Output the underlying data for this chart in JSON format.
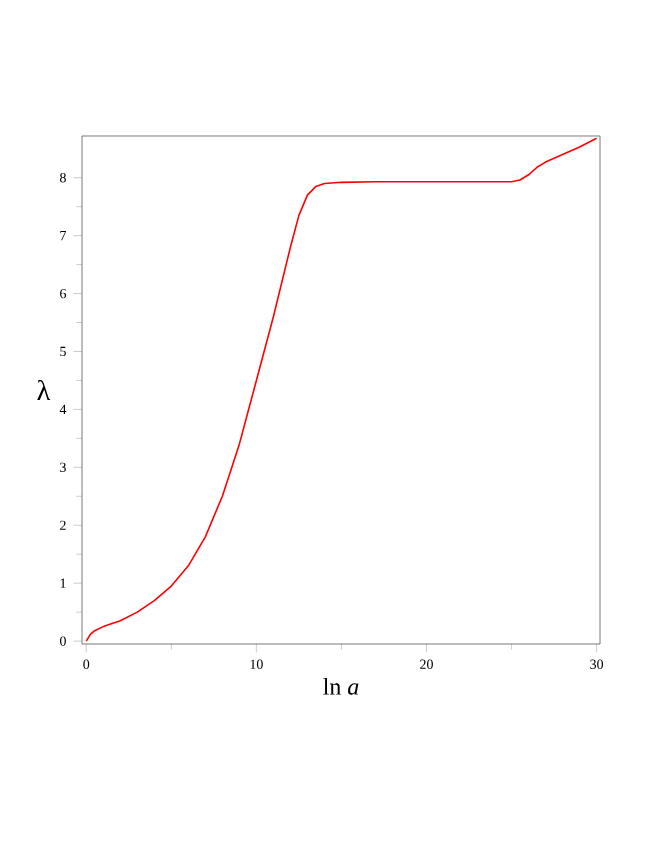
{
  "chart_data": {
    "type": "line",
    "xlabel": "ln *a*",
    "ylabel": "λ",
    "xlim": [
      -0.25,
      30.2
    ],
    "ylim": [
      -0.05,
      8.72
    ],
    "xticks": [
      0,
      10,
      20,
      30
    ],
    "yticks": [
      0,
      1,
      2,
      3,
      4,
      5,
      6,
      7,
      8
    ],
    "marker": "none",
    "line_style": "solid",
    "series": [
      {
        "color": "#ff0000",
        "x": [
          0,
          0.25,
          0.5,
          1,
          2,
          3,
          4,
          5,
          6,
          7,
          8,
          9,
          10,
          11,
          12,
          12.5,
          13,
          13.5,
          14,
          15,
          17,
          20,
          25,
          25.5,
          26,
          26.5,
          27,
          28,
          29,
          30
        ],
        "values": [
          0,
          0.12,
          0.18,
          0.25,
          0.35,
          0.5,
          0.7,
          0.95,
          1.3,
          1.8,
          2.5,
          3.4,
          4.5,
          5.6,
          6.8,
          7.35,
          7.7,
          7.85,
          7.9,
          7.92,
          7.93,
          7.93,
          7.93,
          7.96,
          8.05,
          8.18,
          8.27,
          8.4,
          8.53,
          8.68
        ]
      }
    ]
  }
}
